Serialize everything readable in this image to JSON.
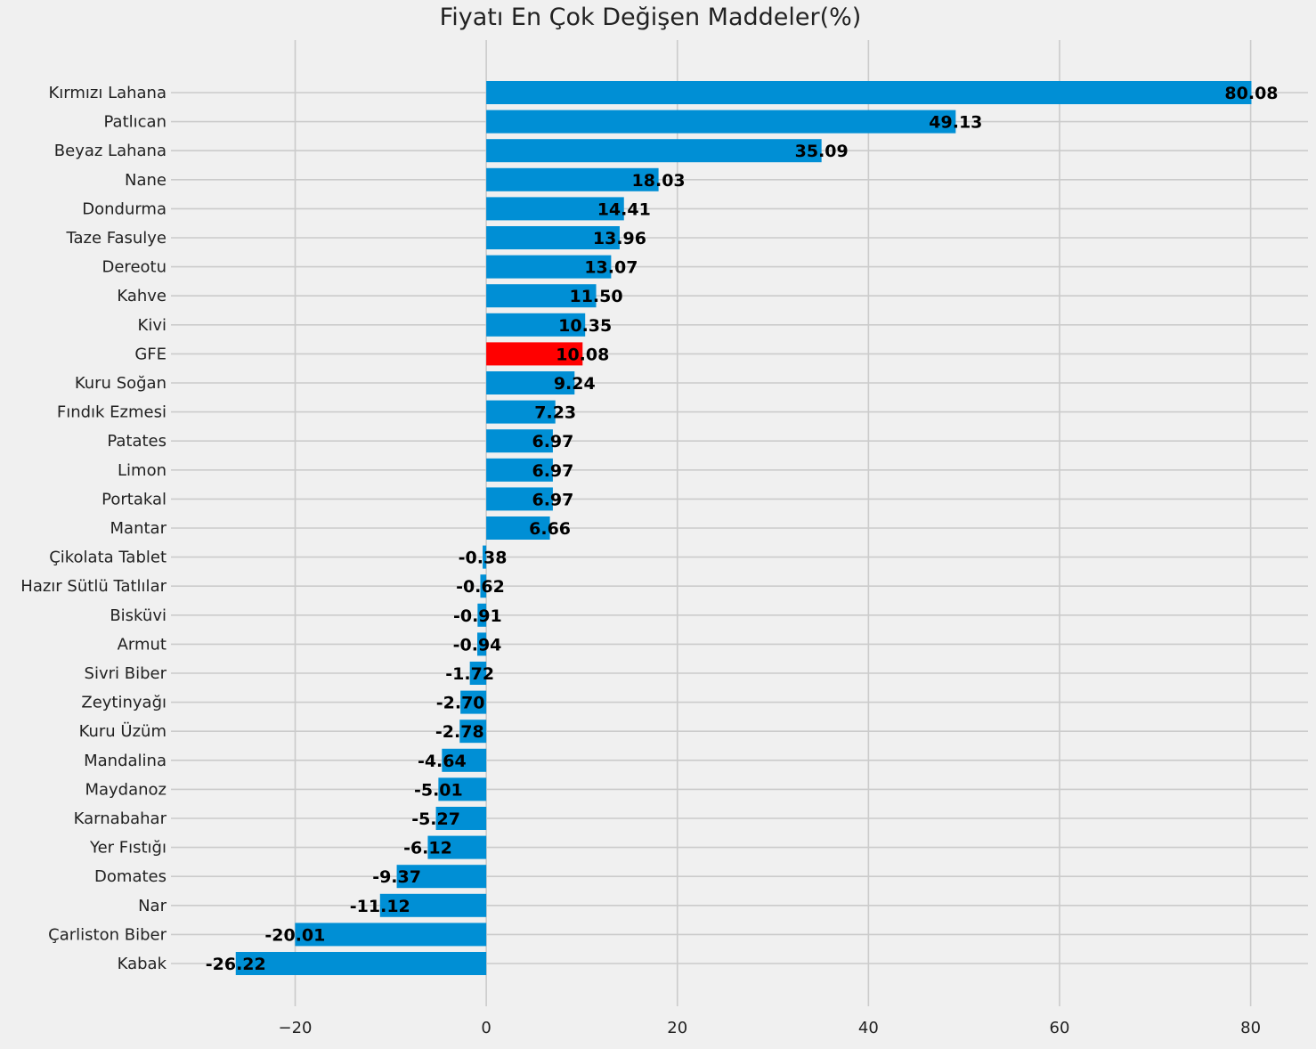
{
  "chart_data": {
    "type": "bar",
    "orientation": "horizontal",
    "title": "Fiyatı En Çok Değişen Maddeler(%)",
    "xlabel": "",
    "ylabel": "",
    "xlim": [
      -33,
      86
    ],
    "xticks": [
      -20,
      0,
      20,
      40,
      60,
      80
    ],
    "xtick_labels": [
      "−20",
      "0",
      "20",
      "40",
      "60",
      "80"
    ],
    "grid": true,
    "colors": {
      "default": "#008fd5",
      "highlight": "#ff0000",
      "background": "#f0f0f0",
      "grid": "#cbcbcb"
    },
    "highlight_category": "GFE",
    "categories": [
      "Kırmızı Lahana",
      "Patlıcan",
      "Beyaz Lahana",
      "Nane",
      "Dondurma",
      "Taze Fasulye",
      "Dereotu",
      "Kahve",
      "Kivi",
      "GFE",
      "Kuru Soğan",
      "Fındık Ezmesi",
      "Patates",
      "Limon",
      "Portakal",
      "Mantar",
      "Çikolata Tablet",
      "Hazır Sütlü Tatlılar",
      "Bisküvi",
      "Armut",
      "Sivri Biber",
      "Zeytinyağı",
      "Kuru Üzüm",
      "Mandalina",
      "Maydanoz",
      "Karnabahar",
      "Yer Fıstığı",
      "Domates",
      "Nar",
      "Çarliston Biber",
      "Kabak"
    ],
    "values": [
      80.08,
      49.13,
      35.09,
      18.03,
      14.41,
      13.96,
      13.07,
      11.5,
      10.35,
      10.08,
      9.24,
      7.23,
      6.97,
      6.97,
      6.97,
      6.66,
      -0.38,
      -0.62,
      -0.91,
      -0.94,
      -1.72,
      -2.7,
      -2.78,
      -4.64,
      -5.01,
      -5.27,
      -6.12,
      -9.37,
      -11.12,
      -20.01,
      -26.22
    ],
    "value_labels": [
      "80.08",
      "49.13",
      "35.09",
      "18.03",
      "14.41",
      "13.96",
      "13.07",
      "11.50",
      "10.35",
      "10.08",
      "9.24",
      "7.23",
      "6.97",
      "6.97",
      "6.97",
      "6.66",
      "-0.38",
      "-0.62",
      "-0.91",
      "-0.94",
      "-1.72",
      "-2.70",
      "-2.78",
      "-4.64",
      "-5.01",
      "-5.27",
      "-6.12",
      "-9.37",
      "-11.12",
      "-20.01",
      "-26.22"
    ]
  }
}
